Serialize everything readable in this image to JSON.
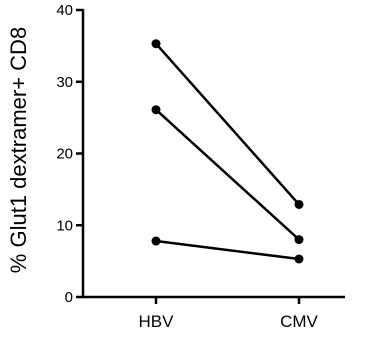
{
  "chart_data": {
    "type": "line",
    "title": "",
    "xlabel": "",
    "ylabel": "% Glut1 dextramer+ CD8",
    "categories": [
      "HBV",
      "CMV"
    ],
    "ylim": [
      0,
      40
    ],
    "yticks": [
      0,
      10,
      20,
      30,
      40
    ],
    "grid": false,
    "legend": "none",
    "series": [
      {
        "values": [
          35.3,
          12.9
        ]
      },
      {
        "values": [
          26.1,
          8.0
        ]
      },
      {
        "values": [
          7.8,
          5.3
        ]
      }
    ],
    "color": "#000000"
  }
}
